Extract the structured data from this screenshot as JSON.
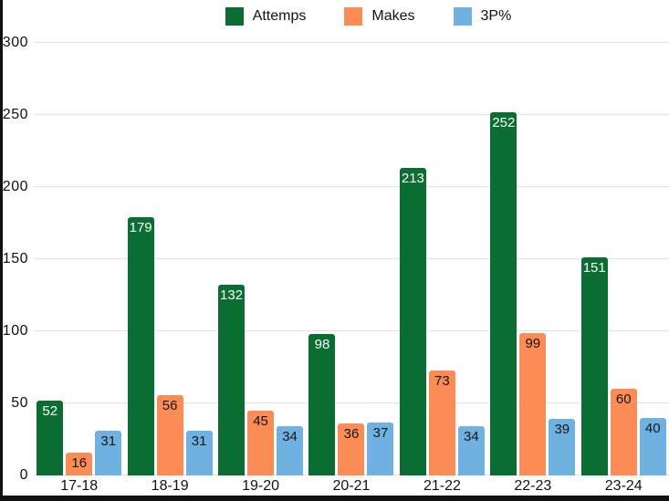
{
  "chart_data": {
    "type": "bar",
    "title": "",
    "xlabel": "",
    "ylabel": "",
    "categories": [
      "17-18",
      "18-19",
      "19-20",
      "20-21",
      "21-22",
      "22-23",
      "23-24"
    ],
    "series": [
      {
        "name": "Attemps",
        "color": "#0a6d32",
        "label_color": "#ffffff",
        "values": [
          52,
          179,
          132,
          98,
          213,
          252,
          151
        ]
      },
      {
        "name": "Makes",
        "color": "#fb8c55",
        "label_color": "#161616",
        "values": [
          16,
          56,
          45,
          36,
          73,
          99,
          60
        ]
      },
      {
        "name": "3P%",
        "color": "#6fb2e2",
        "label_color": "#161616",
        "values": [
          31,
          31,
          34,
          37,
          34,
          39,
          40
        ]
      }
    ],
    "ylim": [
      0,
      300
    ],
    "yticks": [
      0,
      50,
      100,
      150,
      200,
      250,
      300
    ],
    "grid": true,
    "legend_position": "top-center",
    "value_labels": "inside-top"
  },
  "colors": {
    "background": "#ffffff",
    "gridline": "#e2e2e2",
    "axis_frame": "#111111"
  }
}
